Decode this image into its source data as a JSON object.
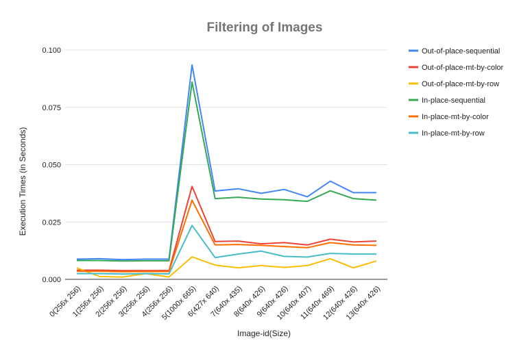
{
  "chart_data": {
    "type": "line",
    "title": "Filtering of Images",
    "xlabel": "Image-id(Size)",
    "ylabel": "Execution Times (in Seconds)",
    "ylim": [
      0,
      0.1
    ],
    "yticks": [
      "0.000",
      "0.025",
      "0.050",
      "0.075",
      "0.100"
    ],
    "ytick_values": [
      0,
      0.025,
      0.05,
      0.075,
      0.1
    ],
    "grid": "horizontal",
    "legend_position": "right",
    "categories": [
      "0(256x 256)",
      "1(256x 256)",
      "2(256x 256)",
      "3(256x 256)",
      "4(256x 256)",
      "5(1000x 665)",
      "6(427x 640)",
      "7(640x 435)",
      "8(640x 426)",
      "9(640x 426)",
      "10(640x 407)",
      "11(640x 469)",
      "12(640x 426)",
      "13(640x 426)"
    ],
    "series": [
      {
        "name": "Out-of-place-sequential",
        "color": "#4285f4",
        "values": [
          0.0088,
          0.009,
          0.0086,
          0.0088,
          0.0088,
          0.0935,
          0.0385,
          0.0395,
          0.0375,
          0.0392,
          0.036,
          0.0428,
          0.0378,
          0.0378
        ]
      },
      {
        "name": "Out-of-place-mt-by-color",
        "color": "#ea4335",
        "values": [
          0.004,
          0.004,
          0.0038,
          0.0038,
          0.0038,
          0.0405,
          0.0165,
          0.0167,
          0.0155,
          0.016,
          0.015,
          0.0175,
          0.0163,
          0.0167
        ]
      },
      {
        "name": "Out-of-place-mt-by-row",
        "color": "#fbbc04",
        "values": [
          0.005,
          0.0012,
          0.001,
          0.0025,
          0.001,
          0.0098,
          0.0062,
          0.005,
          0.006,
          0.0052,
          0.006,
          0.009,
          0.005,
          0.008
        ]
      },
      {
        "name": "In-place-sequential",
        "color": "#34a853",
        "values": [
          0.0082,
          0.0082,
          0.008,
          0.0081,
          0.0081,
          0.086,
          0.0352,
          0.0358,
          0.035,
          0.0347,
          0.034,
          0.0386,
          0.0352,
          0.0345
        ]
      },
      {
        "name": "In-place-mt-by-color",
        "color": "#ff6d01",
        "values": [
          0.0035,
          0.0035,
          0.0033,
          0.0034,
          0.0034,
          0.0345,
          0.015,
          0.0152,
          0.0148,
          0.0143,
          0.0138,
          0.016,
          0.015,
          0.0148
        ]
      },
      {
        "name": "In-place-mt-by-row",
        "color": "#46bdc6",
        "values": [
          0.0025,
          0.0025,
          0.0023,
          0.0025,
          0.0024,
          0.0235,
          0.0095,
          0.011,
          0.0123,
          0.01,
          0.0097,
          0.0113,
          0.011,
          0.011
        ]
      }
    ]
  }
}
